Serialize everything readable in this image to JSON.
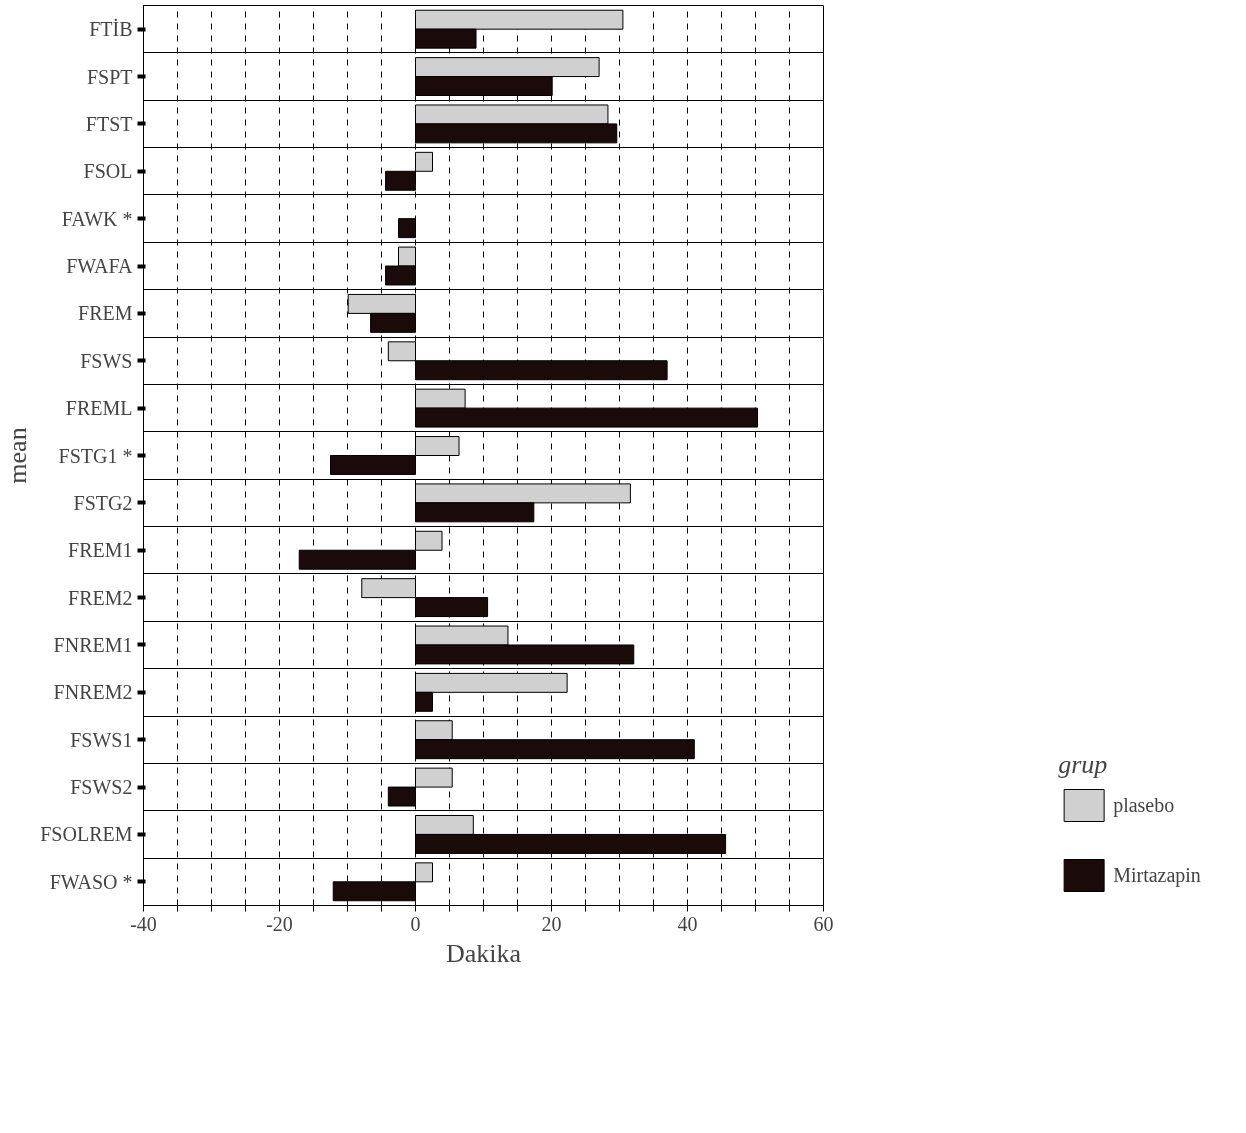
{
  "chart_data": {
    "type": "bar",
    "orientation": "horizontal",
    "xlabel": "Dakika",
    "ylabel": "mean",
    "legend_title": "grup",
    "categories": [
      "FTİB",
      "FSPT",
      "FTST",
      "FSOL",
      "FAWK *",
      "FWAFA",
      "FREM",
      "FSWS",
      "FREML",
      "FSTG1 *",
      "FSTG2",
      "FREM1",
      "FREM2",
      "FNREM1",
      "FNREM2",
      "FSWS1",
      "FSWS2",
      "FSOLREM",
      "FWASO *"
    ],
    "series": [
      {
        "name": "plasebo",
        "color": "#d0d0d0",
        "values": [
          30.5,
          27,
          28.3,
          2.5,
          null,
          -2.5,
          -9.9,
          -4,
          7.3,
          6.4,
          31.6,
          3.9,
          -7.9,
          13.6,
          22.3,
          5.4,
          5.4,
          8.5,
          2.5
        ]
      },
      {
        "name": "Mirtazapin",
        "color": "#1a0a0a",
        "values": [
          8.9,
          20.1,
          29.6,
          -4.4,
          -2.5,
          -4.4,
          -6.6,
          37,
          50.3,
          -12.5,
          17.4,
          -17.1,
          10.6,
          32.1,
          2.5,
          41,
          -4,
          45.6,
          -12.1
        ]
      }
    ],
    "xlim": [
      -40,
      60
    ],
    "xticks": [
      -40,
      {
        "value": -35,
        "label": null
      },
      {
        "value": -30,
        "label": null
      },
      {
        "value": -25,
        "label": null
      },
      -20,
      {
        "value": -15,
        "label": null
      },
      {
        "value": -10,
        "label": null
      },
      {
        "value": -5,
        "label": null
      },
      0,
      {
        "value": 5,
        "label": null
      },
      {
        "value": 10,
        "label": null
      },
      {
        "value": 15,
        "label": null
      },
      20,
      {
        "value": 25,
        "label": null
      },
      {
        "value": 30,
        "label": null
      },
      {
        "value": 35,
        "label": null
      },
      40,
      {
        "value": 45,
        "label": null
      },
      {
        "value": 50,
        "label": null
      },
      {
        "value": 55,
        "label": null
      },
      60
    ],
    "grid": true,
    "legend": "right"
  }
}
